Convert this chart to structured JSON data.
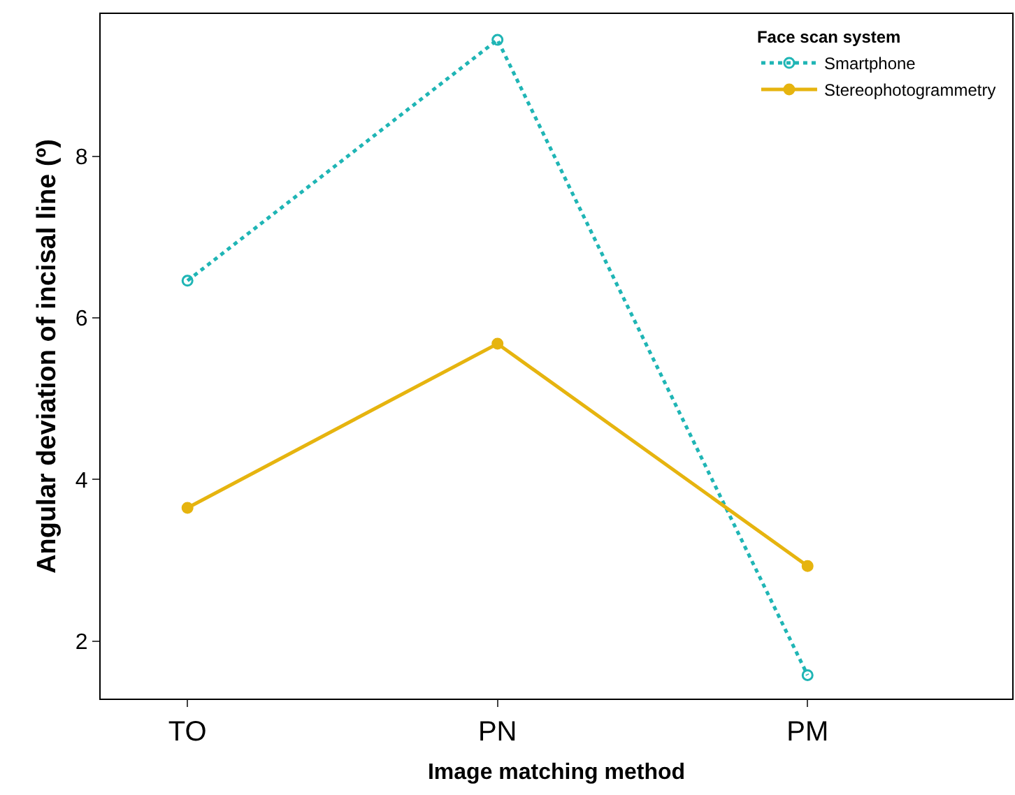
{
  "chart_data": {
    "type": "line",
    "xlabel": "Image matching method",
    "ylabel": "Angular deviation of incisal line (º)",
    "legend_title": "Face scan system",
    "categories": [
      "TO",
      "PN",
      "PM"
    ],
    "series": [
      {
        "name": "Smartphone",
        "color": "#1fb5b5",
        "values": [
          6.46,
          9.44,
          1.58
        ],
        "line_style": "dotted",
        "marker": "circle-open"
      },
      {
        "name": "Stereophotogrammetry",
        "color": "#e6b40f",
        "values": [
          3.65,
          5.68,
          2.93
        ],
        "line_style": "solid",
        "marker": "circle"
      }
    ],
    "ylim": [
      1.29,
      9.76
    ],
    "yticks": [
      2,
      4,
      6,
      8
    ],
    "grid": false,
    "legend": "top right"
  }
}
